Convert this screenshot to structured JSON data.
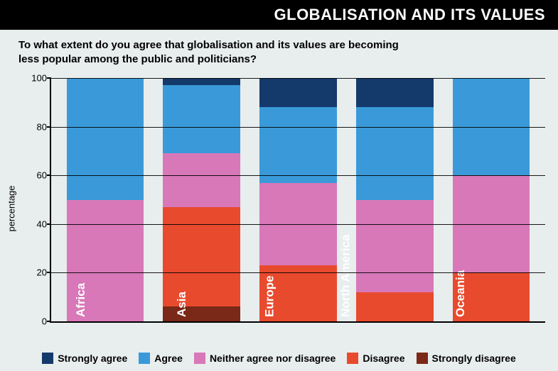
{
  "header": {
    "title": "GLOBALISATION AND ITS VALUES"
  },
  "subtitle": {
    "line1": "To what extent do you agree that globalisation and its values are becoming",
    "line2": "less popular among the public and politicians?"
  },
  "chart": {
    "type": "stacked-bar",
    "y_axis_label": "percentage",
    "ylim": [
      0,
      100
    ],
    "ytick_step": 20,
    "yticks": [
      0,
      20,
      40,
      60,
      80,
      100
    ],
    "background_color": "#e8eded",
    "axis_color": "#000000",
    "grid_color": "#000000",
    "bar_width_pct": 16,
    "categories": [
      "Africa",
      "Asia",
      "Europe",
      "North America",
      "Oceania"
    ],
    "series": [
      {
        "key": "strongly_disagree",
        "label": "Strongly disagree",
        "color": "#7a2817"
      },
      {
        "key": "disagree",
        "label": "Disagree",
        "color": "#e84a2e"
      },
      {
        "key": "neither",
        "label": "Neither agree nor disagree",
        "color": "#d878b8"
      },
      {
        "key": "agree",
        "label": "Agree",
        "color": "#3a9ad9"
      },
      {
        "key": "strongly_agree",
        "label": "Strongly agree",
        "color": "#143a6b"
      }
    ],
    "data": [
      {
        "label": "Africa",
        "strongly_disagree": 0,
        "disagree": 0,
        "neither": 50,
        "agree": 50,
        "strongly_agree": 0
      },
      {
        "label": "Asia",
        "strongly_disagree": 6,
        "disagree": 41,
        "neither": 22,
        "agree": 28,
        "strongly_agree": 3
      },
      {
        "label": "Europe",
        "strongly_disagree": 0,
        "disagree": 23,
        "neither": 34,
        "agree": 31,
        "strongly_agree": 12
      },
      {
        "label": "North America",
        "strongly_disagree": 0,
        "disagree": 12,
        "neither": 38,
        "agree": 38,
        "strongly_agree": 12
      },
      {
        "label": "Oceania",
        "strongly_disagree": 0,
        "disagree": 20,
        "neither": 40,
        "agree": 40,
        "strongly_agree": 0
      }
    ],
    "bar_label_color": "#ffffff",
    "bar_label_fontsize": 17,
    "title_fontsize": 22,
    "subtitle_fontsize": 15
  },
  "legend_order": [
    "strongly_agree",
    "agree",
    "neither",
    "disagree",
    "strongly_disagree"
  ]
}
